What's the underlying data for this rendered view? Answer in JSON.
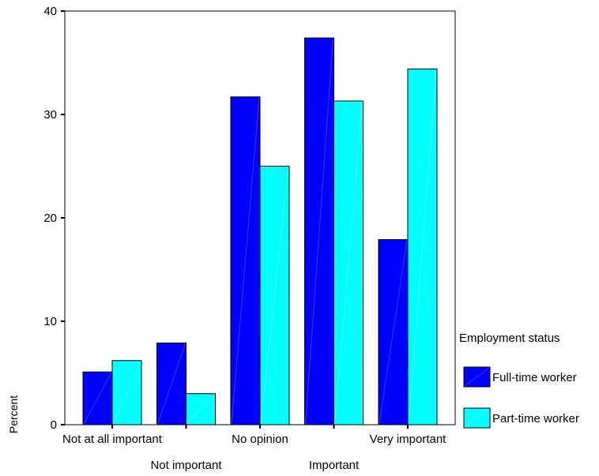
{
  "chart_data": {
    "type": "bar",
    "categories": [
      "Not at all important",
      "Not important",
      "No opinion",
      "Important",
      "Very important"
    ],
    "series": [
      {
        "name": "Full-time worker",
        "values": [
          5.1,
          7.9,
          31.7,
          37.4,
          17.9
        ],
        "color": "#0000ff"
      },
      {
        "name": "Part-time worker",
        "values": [
          6.2,
          3.0,
          25.0,
          31.3,
          34.4
        ],
        "color": "#00ffff"
      }
    ],
    "ylabel": "Percent",
    "xlabel": "",
    "ylim": [
      0,
      40
    ],
    "yticks": [
      0,
      10,
      20,
      30,
      40
    ],
    "legend_title": "Employment status",
    "legend_position": "right",
    "grid": false
  }
}
